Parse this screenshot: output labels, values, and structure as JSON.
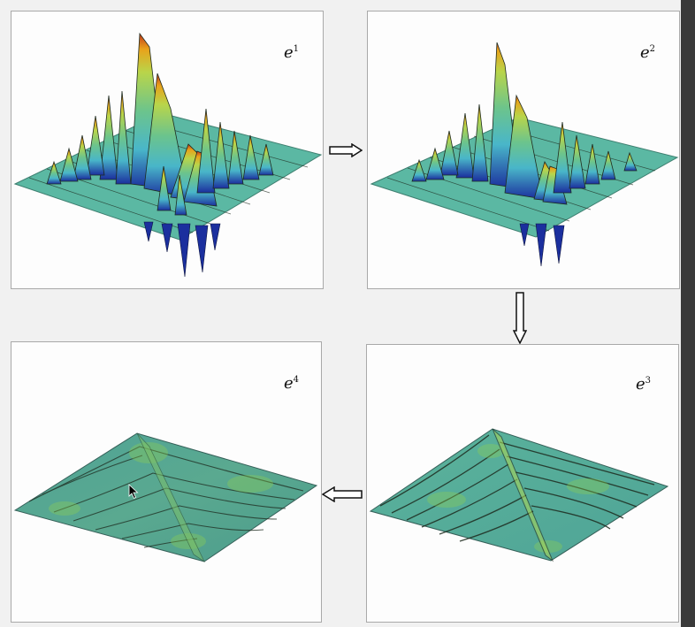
{
  "panels": [
    {
      "id": "e1",
      "base": "e",
      "exp": "1"
    },
    {
      "id": "e2",
      "base": "e",
      "exp": "2"
    },
    {
      "id": "e3",
      "base": "e",
      "exp": "3"
    },
    {
      "id": "e4",
      "base": "e",
      "exp": "4"
    }
  ],
  "colors": {
    "surface_low": "#4fb3a6",
    "surface_mid": "#8fd14f",
    "surface_high": "#e9a21a",
    "peak": "#c0391c",
    "trough": "#1b2f9e",
    "grid": "#1e2b1f"
  }
}
